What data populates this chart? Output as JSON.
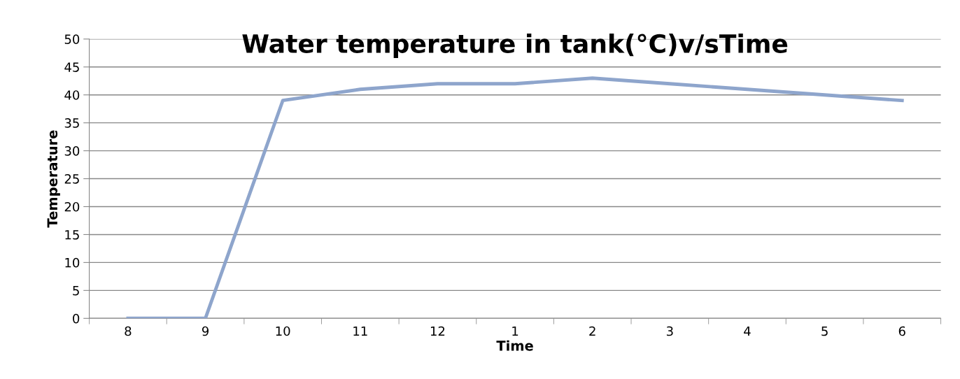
{
  "chart_data": {
    "type": "line",
    "title": "Water temperature in tank(°C)v/sTime",
    "xlabel": "Time",
    "ylabel": "Temperature",
    "categories": [
      "8",
      "9",
      "10",
      "11",
      "12",
      "1",
      "2",
      "3",
      "4",
      "5",
      "6"
    ],
    "series": [
      {
        "color": "#8ea5cc",
        "values": [
          0,
          0,
          39,
          41,
          42,
          42,
          43,
          42,
          41,
          40,
          39
        ]
      }
    ],
    "ylim": [
      0,
      50
    ],
    "yticks": [
      0,
      5,
      10,
      15,
      20,
      25,
      30,
      35,
      40,
      45,
      50
    ],
    "grid": "y",
    "legend": false,
    "marker": "none",
    "line_style": "solid"
  }
}
